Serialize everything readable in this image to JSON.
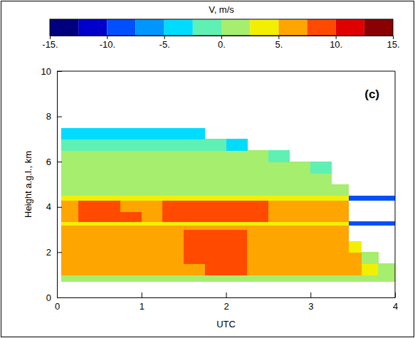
{
  "chart_data": {
    "type": "heatmap",
    "panel_label": "(c)",
    "xlabel": "UTC",
    "ylabel": "Height a.g.l., km",
    "xlim": [
      0,
      4
    ],
    "xticks": [
      0,
      1,
      2,
      3,
      4
    ],
    "ylim": [
      0,
      10
    ],
    "yticks": [
      0,
      2,
      4,
      6,
      8,
      10
    ],
    "xbins": [
      0.05,
      0.25,
      0.5,
      0.75,
      1,
      1.25,
      1.5,
      1.75,
      2,
      2.25,
      2.5,
      2.75,
      3,
      3.25,
      3.45,
      3.6,
      3.8,
      4
    ],
    "ybins": [
      0.7,
      1.0,
      1.5,
      2.0,
      2.5,
      3.0,
      3.2,
      3.35,
      3.8,
      4.3,
      4.5,
      5.0,
      5.5,
      6.0,
      6.5,
      7.0,
      7.5
    ],
    "cells": [
      [
        2,
        2,
        2,
        2,
        2,
        2,
        2,
        2,
        2,
        2,
        2,
        2,
        2,
        2,
        2,
        1,
        1
      ],
      [
        6,
        6,
        6,
        6,
        6,
        6,
        6,
        8,
        8,
        6,
        6,
        6,
        6,
        6,
        6,
        3,
        1
      ],
      [
        6,
        6,
        6,
        6,
        6,
        6,
        8,
        8,
        8,
        6,
        6,
        6,
        6,
        6,
        6,
        2,
        null
      ],
      [
        6,
        6,
        6,
        6,
        6,
        6,
        9,
        9,
        9,
        6,
        6,
        6,
        6,
        6,
        4,
        null,
        null
      ],
      [
        6,
        6,
        7,
        6,
        6,
        6,
        8,
        8,
        8,
        6,
        6,
        6,
        6,
        6,
        null,
        null,
        null
      ],
      [
        6,
        6,
        6,
        6,
        6,
        6,
        6,
        6,
        6,
        6,
        6,
        6,
        6,
        6,
        null,
        null,
        null
      ],
      [
        4,
        4,
        4,
        4,
        4,
        4,
        4,
        4,
        4,
        4,
        4,
        4,
        4,
        4,
        -8,
        -8,
        -8
      ],
      [
        7,
        8,
        8,
        8,
        7,
        9,
        9,
        9,
        9,
        9,
        7,
        7,
        7,
        6,
        null,
        null,
        null
      ],
      [
        7,
        8,
        8,
        7,
        7,
        8,
        9,
        9,
        9,
        8,
        7,
        7,
        7,
        6,
        null,
        null,
        null
      ],
      [
        3,
        3,
        3,
        3,
        3,
        3,
        3,
        3,
        3,
        3,
        3,
        3,
        3,
        3,
        -8,
        -8,
        -8
      ],
      [
        1,
        1,
        1,
        1,
        1,
        1,
        1,
        1,
        1,
        1,
        1,
        1,
        1,
        1,
        null,
        null,
        null
      ],
      [
        1,
        1,
        1,
        1,
        1,
        1,
        1,
        1,
        1,
        1,
        1,
        1,
        1,
        null,
        null,
        null,
        null
      ],
      [
        1,
        1,
        1,
        1,
        1,
        1,
        1,
        1,
        1,
        1,
        1,
        1,
        -1,
        null,
        null,
        null,
        null
      ],
      [
        0,
        0,
        0,
        0,
        0,
        0,
        0,
        0,
        0,
        0,
        -2,
        null,
        null,
        null,
        null,
        null,
        null
      ],
      [
        -1,
        -1,
        -1,
        -1,
        -1,
        -1,
        -1,
        -1,
        -3,
        null,
        null,
        null,
        null,
        null,
        null,
        null,
        null
      ],
      [
        -4,
        -4,
        -4,
        -4,
        -4,
        -4,
        -4,
        null,
        null,
        null,
        null,
        null,
        null,
        null,
        null,
        null,
        null
      ]
    ],
    "colorbar": {
      "label": "V, m/s",
      "range": [
        -15,
        15
      ],
      "ticks": [
        {
          "value": -15,
          "label": "-15."
        },
        {
          "value": -10,
          "label": "-10."
        },
        {
          "value": -5,
          "label": "-5."
        },
        {
          "value": 0,
          "label": "0."
        },
        {
          "value": 5,
          "label": "5."
        },
        {
          "value": 10,
          "label": "10."
        },
        {
          "value": 15,
          "label": "15."
        }
      ]
    }
  }
}
